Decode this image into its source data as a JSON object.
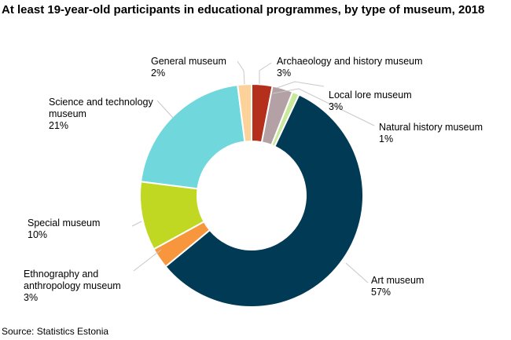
{
  "chart_data": {
    "type": "pie",
    "donut": true,
    "title": "At least 19-year-old participants in educational programmes, by type of museum, 2018",
    "source": "Source: Statistics Estonia",
    "slices": [
      {
        "name": "Archaeology and history museum",
        "value": 3,
        "label": "3%",
        "color": "#b5301c"
      },
      {
        "name": "Local lore museum",
        "value": 3,
        "label": "3%",
        "color": "#b3a1a6"
      },
      {
        "name": "Natural history museum",
        "value": 1,
        "label": "1%",
        "color": "#c8e89a"
      },
      {
        "name": "Art museum",
        "value": 57,
        "label": "57%",
        "color": "#003a55"
      },
      {
        "name": "Ethnography and anthropology museum",
        "value": 3,
        "label": "3%",
        "color": "#f7963c"
      },
      {
        "name": "Special museum",
        "value": 10,
        "label": "10%",
        "color": "#c1d822"
      },
      {
        "name": "Science and technology museum",
        "value": 21,
        "label": "21%",
        "color": "#70d8dc"
      },
      {
        "name": "General museum",
        "value": 2,
        "label": "2%",
        "color": "#fdd29a"
      }
    ]
  }
}
